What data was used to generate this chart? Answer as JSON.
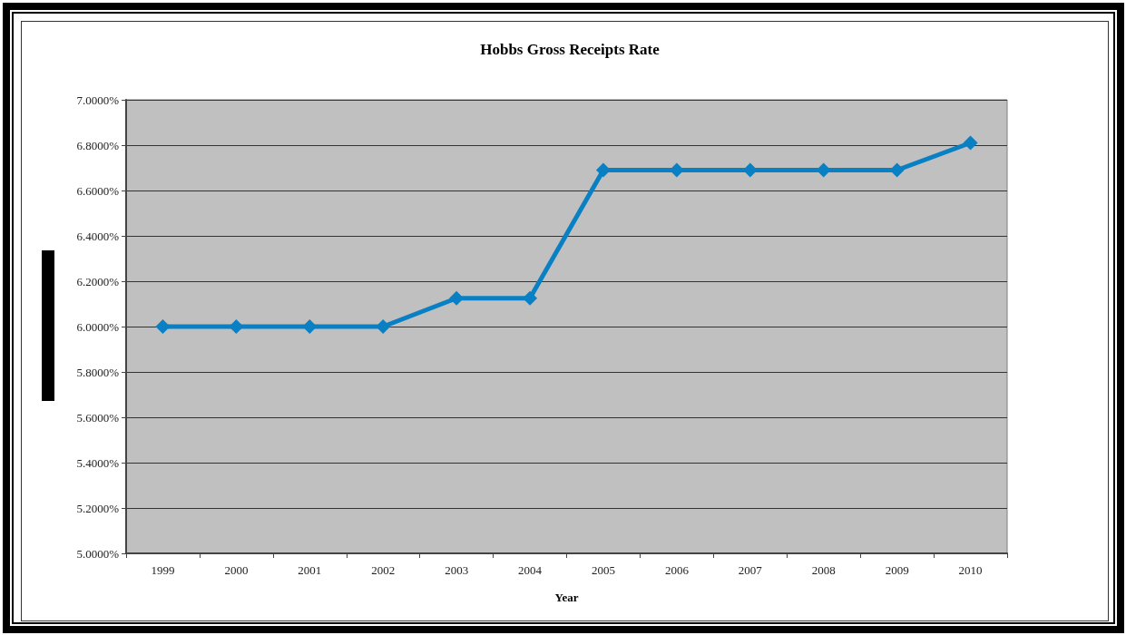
{
  "chart_data": {
    "type": "line",
    "title": "Hobbs Gross Receipts Rate",
    "xlabel": "Year",
    "categories": [
      "1999",
      "2000",
      "2001",
      "2002",
      "2003",
      "2004",
      "2005",
      "2006",
      "2007",
      "2008",
      "2009",
      "2010"
    ],
    "values": [
      6.0,
      6.0,
      6.0,
      6.0,
      6.125,
      6.125,
      6.69,
      6.69,
      6.69,
      6.69,
      6.69,
      6.81
    ],
    "color": "#0a80c4",
    "ylim": [
      5,
      7
    ],
    "yticks": [
      {
        "value": 5,
        "label": "5.0000%"
      },
      {
        "value": 5.2,
        "label": "5.2000%"
      },
      {
        "value": 5.4,
        "label": "5.4000%"
      },
      {
        "value": 5.6,
        "label": "5.6000%"
      },
      {
        "value": 5.8,
        "label": "5.8000%"
      },
      {
        "value": 6,
        "label": "6.0000%"
      },
      {
        "value": 6.2,
        "label": "6.2000%"
      },
      {
        "value": 6.4,
        "label": "6.4000%"
      },
      {
        "value": 6.6,
        "label": "6.6000%"
      },
      {
        "value": 6.8,
        "label": "6.8000%"
      },
      {
        "value": 7,
        "label": "7.0000%"
      }
    ],
    "grid": "y",
    "marker": "diamond",
    "line_style": "solid"
  }
}
